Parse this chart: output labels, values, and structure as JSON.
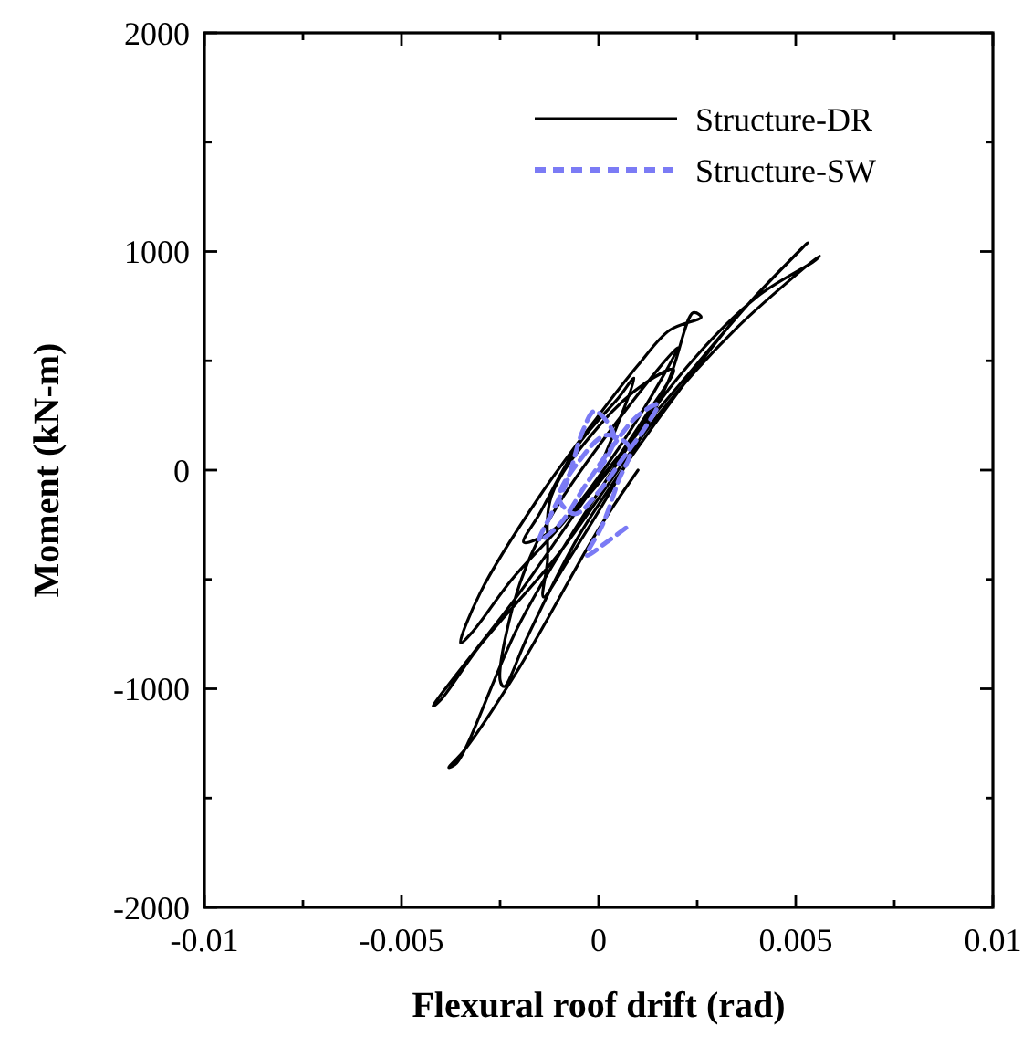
{
  "chart_data": {
    "type": "line",
    "xlabel": "Flexural roof drift (rad)",
    "ylabel": "Moment (kN-m)",
    "xlim": [
      -0.01,
      0.01
    ],
    "ylim": [
      -2000,
      2000
    ],
    "xticks": [
      -0.01,
      {
        "value": -0.0075,
        "label": null
      },
      -0.005,
      {
        "value": -0.0025,
        "label": null
      },
      0,
      {
        "value": 0.0025,
        "label": null
      },
      0.005,
      {
        "value": 0.0075,
        "label": null
      },
      0.01
    ],
    "yticks": [
      -2000,
      {
        "value": -1500,
        "label": null
      },
      -1000,
      {
        "value": -500,
        "label": null
      },
      0,
      {
        "value": 500,
        "label": null
      },
      1000,
      {
        "value": 1500,
        "label": null
      },
      2000
    ],
    "grid": false,
    "legend": "top right",
    "series": [
      {
        "name": "Structure-DR",
        "color": "#000000",
        "line_style": "solid",
        "x": [
          0,
          0.0009,
          0.0005,
          -0.0005,
          -0.0015,
          -0.0019,
          -0.0012,
          0,
          0.0012,
          0.0019,
          0.0012,
          0,
          -0.0012,
          -0.0013,
          -0.0014,
          -0.0008,
          0.0008,
          0.0018,
          0.0024,
          0.0026,
          0.0018,
          0.001,
          0,
          -0.0015,
          -0.003,
          -0.0035,
          -0.0032,
          -0.0022,
          -0.0008,
          0.0008,
          0.002,
          -0.001,
          -0.002,
          -0.0025,
          -0.0024,
          -0.0018,
          -0.0005,
          0.0015,
          0.0035,
          0.0053,
          0.004,
          0.002,
          0,
          -0.002,
          -0.0042,
          -0.004,
          -0.003,
          -0.001,
          0.0015,
          0.0035,
          0.0056,
          0.0055,
          0.004,
          0.002,
          0,
          -0.002,
          -0.0036,
          -0.0038,
          -0.0034,
          -0.002,
          0,
          0.001
        ],
        "values": [
          0,
          420,
          330,
          120,
          -200,
          -330,
          -280,
          -60,
          250,
          460,
          400,
          200,
          -120,
          -420,
          -580,
          -420,
          60,
          420,
          720,
          700,
          640,
          480,
          250,
          -120,
          -560,
          -790,
          -740,
          -500,
          -220,
          180,
          560,
          -150,
          -520,
          -960,
          -990,
          -760,
          -300,
          230,
          700,
          1040,
          800,
          380,
          -50,
          -560,
          -1080,
          -1050,
          -800,
          -380,
          250,
          650,
          980,
          960,
          790,
          420,
          -100,
          -700,
          -1340,
          -1360,
          -1280,
          -900,
          -270,
          0
        ]
      },
      {
        "name": "Structure-SW",
        "color": "#7b7bf5",
        "line_style": "dashed",
        "x": [
          0,
          0.0004,
          -0.0001,
          -0.0004,
          -0.0008,
          -0.0012,
          -0.0015,
          -0.001,
          -0.0003,
          0.0004,
          0.001,
          0.0015,
          0.0012,
          0.0006,
          0,
          -0.0006,
          -0.001,
          -0.0005,
          0.0002,
          0.0008,
          0.0005,
          0.0001,
          -0.0003,
          0.0002,
          0.0008
        ],
        "values": [
          0,
          150,
          270,
          180,
          -50,
          -200,
          -320,
          -250,
          -60,
          120,
          250,
          300,
          200,
          50,
          -100,
          -200,
          -130,
          40,
          160,
          100,
          -50,
          -250,
          -390,
          -330,
          -250
        ]
      }
    ]
  }
}
